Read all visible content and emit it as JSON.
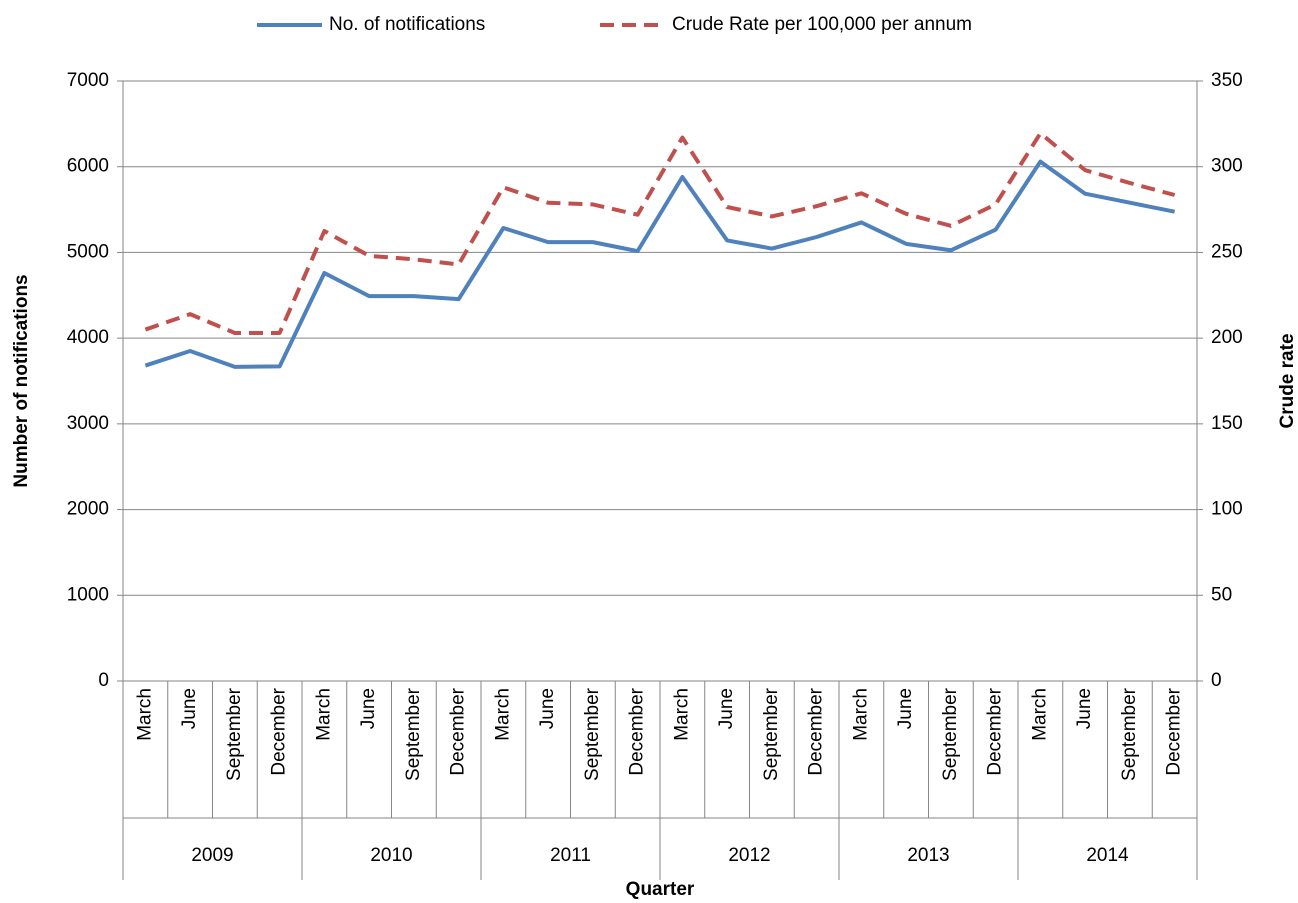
{
  "chart_data": {
    "type": "line",
    "categories": [
      "March",
      "June",
      "September",
      "December",
      "March",
      "June",
      "September",
      "December",
      "March",
      "June",
      "September",
      "December",
      "March",
      "June",
      "September",
      "December",
      "March",
      "June",
      "September",
      "December",
      "March",
      "June",
      "September",
      "December"
    ],
    "category_groups": [
      "2009",
      "2010",
      "2011",
      "2012",
      "2013",
      "2014"
    ],
    "series": [
      {
        "name": "No. of notifications",
        "color": "#4f81bd",
        "values": [
          3680,
          3850,
          3665,
          3670,
          4760,
          4490,
          4490,
          4455,
          5285,
          5120,
          5120,
          5015,
          5880,
          5140,
          5045,
          5180,
          5350,
          5100,
          5025,
          5265,
          6060,
          5685,
          5580,
          5475
        ]
      },
      {
        "name": "Crude Rate per 100,000 per annum",
        "color": "#c0504d",
        "dashed": true,
        "axis": "y2",
        "values": [
          205,
          214,
          203,
          203,
          262.5,
          248,
          246,
          243,
          288,
          279,
          278,
          272,
          317,
          276.5,
          271,
          277,
          284.5,
          272.5,
          265.5,
          278,
          319.5,
          298,
          290.5,
          283.5
        ]
      }
    ],
    "xlabel": "Quarter",
    "ylabel": "Number of notifications",
    "y2label": "Crude rate",
    "ylim": [
      0,
      7000
    ],
    "yticks": [
      0,
      1000,
      2000,
      3000,
      4000,
      5000,
      6000,
      7000
    ],
    "y2lim": [
      0,
      350
    ],
    "y2ticks": [
      0,
      50,
      100,
      150,
      200,
      250,
      300,
      350
    ],
    "grid": true,
    "legend": "top"
  }
}
